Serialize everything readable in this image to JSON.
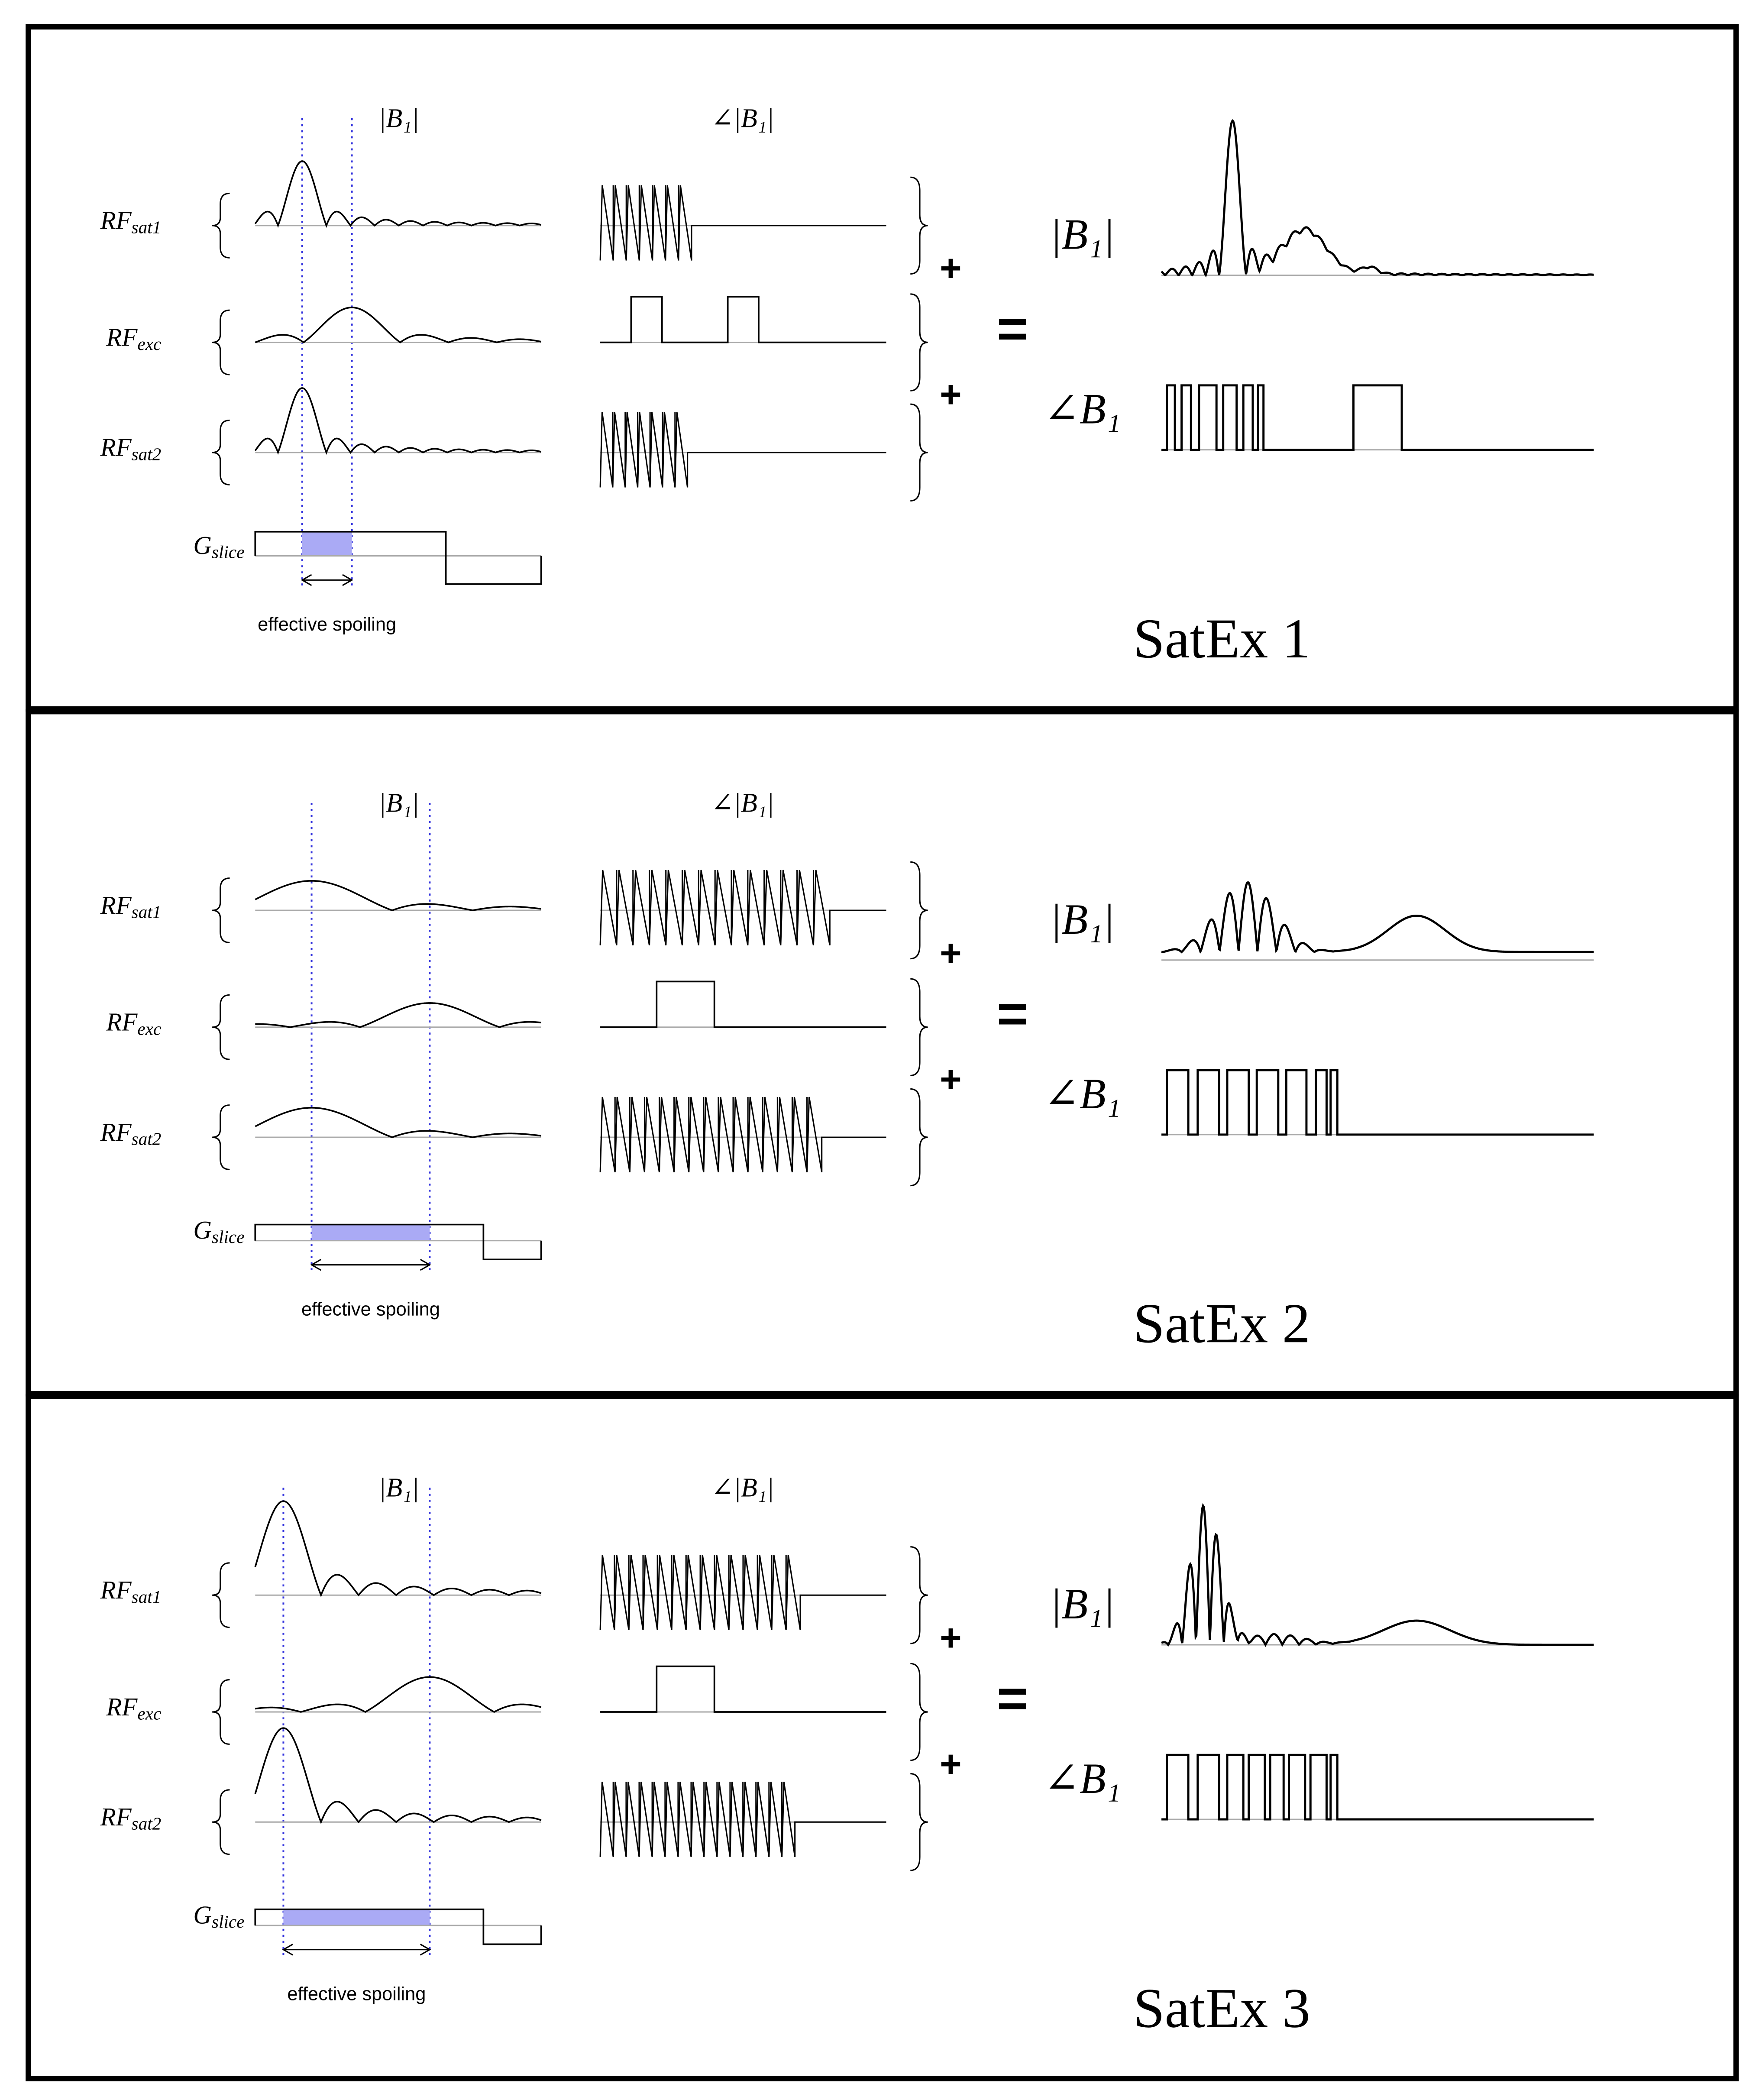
{
  "panels": [
    {
      "title": "SatEx 1",
      "magnitude_header": "|B₁|",
      "phase_header": "∠|B₁|",
      "rows": [
        {
          "main": "RF",
          "sub": "sat1"
        },
        {
          "main": "RF",
          "sub": "exc"
        },
        {
          "main": "RF",
          "sub": "sat2"
        }
      ],
      "gradient": {
        "main": "G",
        "sub": "slice"
      },
      "spoiling_label": "effective spoiling",
      "plus": "+",
      "equals": "=",
      "result_magnitude": "|B₁|",
      "result_phase": "∠B₁"
    },
    {
      "title": "SatEx 2",
      "magnitude_header": "|B₁|",
      "phase_header": "∠|B₁|",
      "rows": [
        {
          "main": "RF",
          "sub": "sat1"
        },
        {
          "main": "RF",
          "sub": "exc"
        },
        {
          "main": "RF",
          "sub": "sat2"
        }
      ],
      "gradient": {
        "main": "G",
        "sub": "slice"
      },
      "spoiling_label": "effective spoiling",
      "plus": "+",
      "equals": "=",
      "result_magnitude": "|B₁|",
      "result_phase": "∠B₁"
    },
    {
      "title": "SatEx 3",
      "magnitude_header": "|B₁|",
      "phase_header": "∠|B₁|",
      "rows": [
        {
          "main": "RF",
          "sub": "sat1"
        },
        {
          "main": "RF",
          "sub": "exc"
        },
        {
          "main": "RF",
          "sub": "sat2"
        }
      ],
      "gradient": {
        "main": "G",
        "sub": "slice"
      },
      "spoiling_label": "effective spoiling",
      "plus": "+",
      "equals": "=",
      "result_magnitude": "|B₁|",
      "result_phase": "∠B₁"
    }
  ]
}
